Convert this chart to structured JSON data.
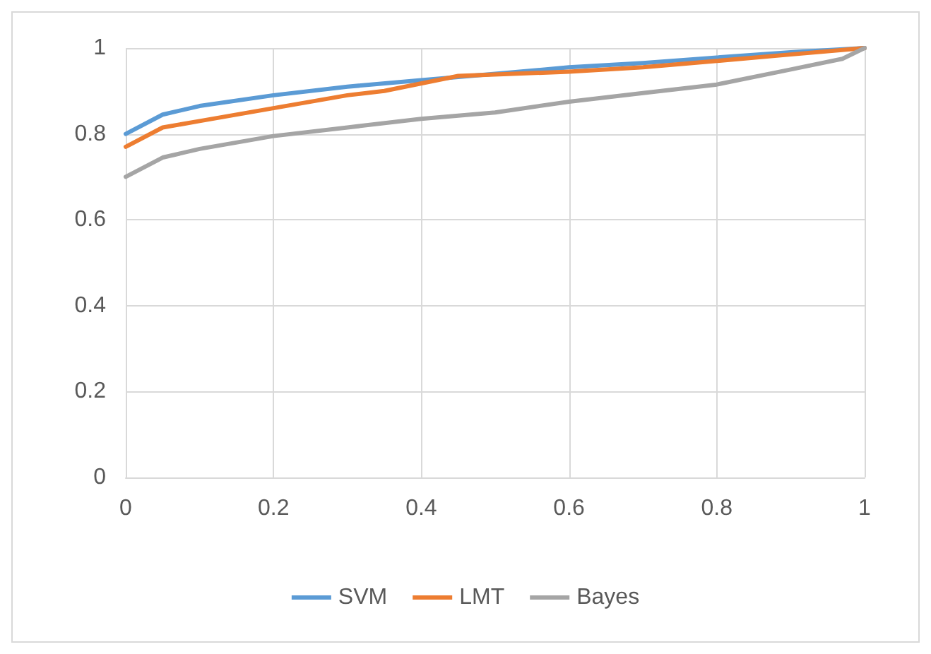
{
  "chart_data": {
    "type": "line",
    "xlim": [
      0,
      1
    ],
    "xticks": [
      0,
      0.2,
      0.4,
      0.6,
      0.8,
      1
    ],
    "ylim": [
      0,
      1
    ],
    "yticks": [
      0,
      0.2,
      0.4,
      0.6,
      0.8,
      1
    ],
    "grid": true,
    "legend": "bottom",
    "marker": "none",
    "line_style": "solid",
    "series": [
      {
        "name": "SVM",
        "color": "#5b9bd5",
        "x": [
          0,
          0.05,
          0.1,
          0.2,
          0.3,
          0.4,
          0.5,
          0.6,
          0.7,
          0.8,
          0.9,
          1
        ],
        "values": [
          0.8,
          0.845,
          0.865,
          0.89,
          0.91,
          0.925,
          0.94,
          0.955,
          0.965,
          0.978,
          0.99,
          1
        ]
      },
      {
        "name": "LMT",
        "color": "#ed7d31",
        "x": [
          0,
          0.05,
          0.1,
          0.2,
          0.3,
          0.35,
          0.45,
          0.6,
          0.7,
          0.8,
          0.9,
          1
        ],
        "values": [
          0.77,
          0.815,
          0.83,
          0.86,
          0.89,
          0.9,
          0.935,
          0.945,
          0.955,
          0.97,
          0.985,
          1
        ]
      },
      {
        "name": "Bayes",
        "color": "#a5a5a5",
        "x": [
          0,
          0.05,
          0.1,
          0.2,
          0.3,
          0.4,
          0.5,
          0.6,
          0.7,
          0.8,
          0.9,
          0.97,
          1
        ],
        "values": [
          0.7,
          0.745,
          0.765,
          0.795,
          0.815,
          0.835,
          0.85,
          0.875,
          0.895,
          0.915,
          0.95,
          0.975,
          1
        ]
      }
    ]
  }
}
